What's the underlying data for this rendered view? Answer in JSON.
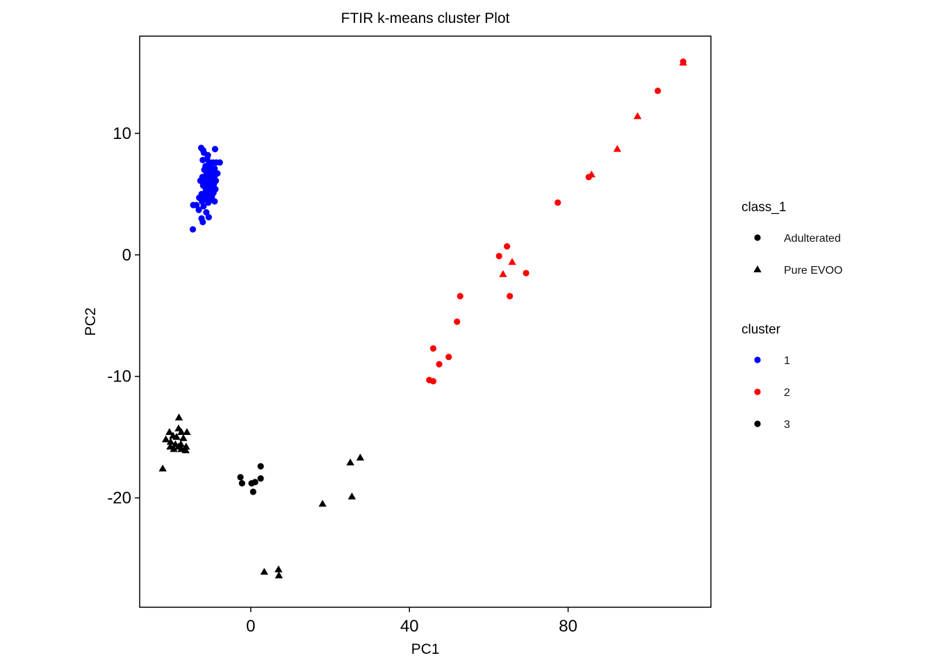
{
  "chart_data": {
    "type": "scatter",
    "title": "FTIR k-means cluster Plot",
    "xlabel": "PC1",
    "ylabel": "PC2",
    "xlim": [
      -28,
      116
    ],
    "ylim": [
      -29,
      18
    ],
    "x_ticks": [
      0,
      40,
      80
    ],
    "x_tick_labels": [
      "0",
      "40",
      "80"
    ],
    "y_ticks": [
      -20,
      -10,
      0,
      10
    ],
    "y_tick_labels": [
      "-20",
      "-10",
      "0",
      "10"
    ],
    "grid": false,
    "legend_position": "right",
    "legends": [
      {
        "title": "class_1",
        "entries": [
          {
            "label": "Adulterated",
            "shape": "circle"
          },
          {
            "label": "Pure EVOO",
            "shape": "triangle"
          }
        ]
      },
      {
        "title": "cluster",
        "entries": [
          {
            "label": "1",
            "color": "#0000FF"
          },
          {
            "label": "2",
            "color": "#FF0000"
          },
          {
            "label": "3",
            "color": "#000000"
          }
        ]
      }
    ],
    "colors": {
      "1": "#0000FF",
      "2": "#FF0000",
      "3": "#000000"
    },
    "series": [
      {
        "name": "1",
        "class": "Adulterated",
        "points": [
          [
            -12.5,
            8.8
          ],
          [
            -12,
            8.6
          ],
          [
            -11.8,
            8.4
          ],
          [
            -10.8,
            8.2
          ],
          [
            -9,
            8.7
          ],
          [
            -11,
            7.9
          ],
          [
            -12.1,
            7.8
          ],
          [
            -10.5,
            7.6
          ],
          [
            -9.6,
            7.6
          ],
          [
            -8.7,
            7.6
          ],
          [
            -7.8,
            7.6
          ],
          [
            -11.4,
            7.3
          ],
          [
            -10.1,
            7.2
          ],
          [
            -9.1,
            7.1
          ],
          [
            -11.7,
            7
          ],
          [
            -10.6,
            6.9
          ],
          [
            -9.5,
            6.8
          ],
          [
            -8.4,
            6.7
          ],
          [
            -11.2,
            6.6
          ],
          [
            -10,
            6.5
          ],
          [
            -9.2,
            6.4
          ],
          [
            -12.2,
            6.4
          ],
          [
            -10.9,
            6.3
          ],
          [
            -9.7,
            6.2
          ],
          [
            -8.8,
            6.1
          ],
          [
            -12.7,
            6.1
          ],
          [
            -11.5,
            6
          ],
          [
            -10.3,
            5.9
          ],
          [
            -9.3,
            5.8
          ],
          [
            -12,
            5.7
          ],
          [
            -10.8,
            5.6
          ],
          [
            -9.6,
            5.5
          ],
          [
            -8.9,
            5.4
          ],
          [
            -11.3,
            5.3
          ],
          [
            -10.2,
            5.2
          ],
          [
            -9.4,
            5.1
          ],
          [
            -12.4,
            5
          ],
          [
            -11.1,
            4.9
          ],
          [
            -9.8,
            4.8
          ],
          [
            -13,
            4.7
          ],
          [
            -11.6,
            4.6
          ],
          [
            -10.4,
            4.5
          ],
          [
            -9.1,
            4.4
          ],
          [
            -12.3,
            4.4
          ],
          [
            -10.7,
            4.3
          ],
          [
            -13.7,
            4.1
          ],
          [
            -14.5,
            4.1
          ],
          [
            -11.9,
            4
          ],
          [
            -13.1,
            3.7
          ],
          [
            -11.2,
            3.5
          ],
          [
            -10.6,
            3.1
          ],
          [
            -12.4,
            3
          ],
          [
            -12.1,
            2.7
          ],
          [
            -14.6,
            2.1
          ]
        ]
      },
      {
        "name": "2",
        "class": "Adulterated",
        "points": [
          [
            109,
            15.9
          ],
          [
            102.6,
            13.5
          ],
          [
            77.4,
            4.3
          ],
          [
            85.2,
            6.4
          ],
          [
            64.6,
            0.7
          ],
          [
            62.6,
            -0.1
          ],
          [
            69.4,
            -1.5
          ],
          [
            52.8,
            -3.4
          ],
          [
            65.3,
            -3.4
          ],
          [
            52,
            -5.5
          ],
          [
            46,
            -7.7
          ],
          [
            49.9,
            -8.4
          ],
          [
            47.5,
            -9
          ],
          [
            45,
            -10.3
          ],
          [
            46,
            -10.4
          ]
        ]
      },
      {
        "name": "2",
        "class": "Pure EVOO",
        "points": [
          [
            109,
            15.8
          ],
          [
            97.5,
            11.4
          ],
          [
            92.4,
            8.7
          ],
          [
            85.9,
            6.6
          ],
          [
            65.9,
            -0.6
          ],
          [
            63.6,
            -1.6
          ]
        ]
      },
      {
        "name": "3",
        "class": "Adulterated",
        "points": [
          [
            2.5,
            -17.4
          ],
          [
            -2.6,
            -18.3
          ],
          [
            2.5,
            -18.4
          ],
          [
            1.1,
            -18.7
          ],
          [
            0.2,
            -18.8
          ],
          [
            -2.2,
            -18.8
          ],
          [
            0.6,
            -19.5
          ]
        ]
      },
      {
        "name": "3",
        "class": "Pure EVOO",
        "points": [
          [
            -18.1,
            -13.4
          ],
          [
            -20.5,
            -14.6
          ],
          [
            -18.2,
            -14.3
          ],
          [
            -17.5,
            -14.6
          ],
          [
            -16.1,
            -14.6
          ],
          [
            -19.6,
            -14.9
          ],
          [
            -18.7,
            -15
          ],
          [
            -17,
            -15.1
          ],
          [
            -21.4,
            -15.2
          ],
          [
            -20.2,
            -15.4
          ],
          [
            -19,
            -15.6
          ],
          [
            -17.6,
            -15.6
          ],
          [
            -16.3,
            -15.8
          ],
          [
            -18.2,
            -15.8
          ],
          [
            -20.3,
            -15.8
          ],
          [
            -19.4,
            -16
          ],
          [
            -17.5,
            -16
          ],
          [
            -16.4,
            -16.1
          ],
          [
            -22.2,
            -17.6
          ],
          [
            27.6,
            -16.7
          ],
          [
            25.1,
            -17.1
          ],
          [
            25.5,
            -19.9
          ],
          [
            18.1,
            -20.5
          ],
          [
            3.4,
            -26.1
          ],
          [
            7,
            -25.9
          ],
          [
            7.1,
            -26.4
          ]
        ]
      }
    ]
  }
}
